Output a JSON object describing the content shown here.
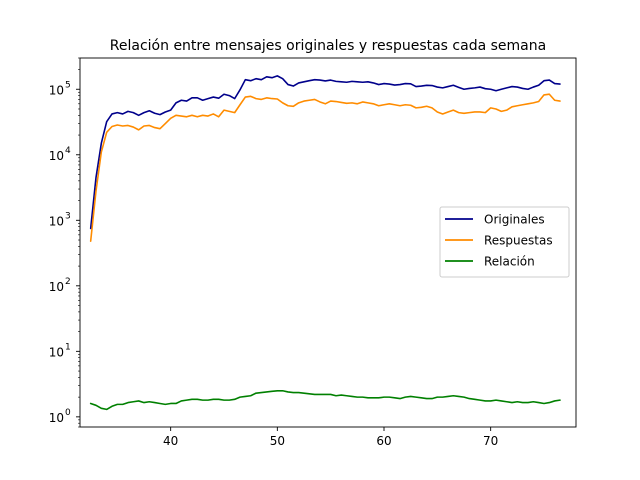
{
  "chart_data": {
    "type": "line",
    "title": "Relación entre mensajes originales y respuestas cada semana",
    "xlabel": "",
    "ylabel": "",
    "yscale": "log",
    "xlim": [
      31.5,
      78
    ],
    "ylim": [
      0.7,
      300000
    ],
    "x_ticks": [
      {
        "value": 40,
        "label": "40"
      },
      {
        "value": 50,
        "label": "50"
      },
      {
        "value": 60,
        "label": "60"
      },
      {
        "value": 70,
        "label": "70"
      }
    ],
    "y_ticks": [
      {
        "value": 1,
        "base": "10",
        "exp": "0"
      },
      {
        "value": 10,
        "base": "10",
        "exp": "1"
      },
      {
        "value": 100,
        "base": "10",
        "exp": "2"
      },
      {
        "value": 1000,
        "base": "10",
        "exp": "3"
      },
      {
        "value": 10000,
        "base": "10",
        "exp": "4"
      },
      {
        "value": 100000,
        "base": "10",
        "exp": "5"
      }
    ],
    "legend_position": "center-right",
    "grid": false,
    "x": [
      32.5,
      33,
      33.5,
      34,
      34.5,
      35,
      35.5,
      36,
      36.5,
      37,
      37.5,
      38,
      38.5,
      39,
      39.5,
      40,
      40.5,
      41,
      41.5,
      42,
      42.5,
      43,
      43.5,
      44,
      44.5,
      45,
      45.5,
      46,
      46.5,
      47,
      47.5,
      48,
      48.5,
      49,
      49.5,
      50,
      50.5,
      51,
      51.5,
      52,
      52.5,
      53,
      53.5,
      54,
      54.5,
      55,
      55.5,
      56,
      56.5,
      57,
      57.5,
      58,
      58.5,
      59,
      59.5,
      60,
      60.5,
      61,
      61.5,
      62,
      62.5,
      63,
      63.5,
      64,
      64.5,
      65,
      65.5,
      66,
      66.5,
      67,
      67.5,
      68,
      68.5,
      69,
      69.5,
      70,
      70.5,
      71,
      71.5,
      72,
      72.5,
      73,
      73.5,
      74,
      74.5,
      75,
      75.5,
      76,
      76.5
    ],
    "series": [
      {
        "name": "Originales",
        "color": "#00008b",
        "values": [
          750,
          4500,
          15000,
          32000,
          42000,
          44000,
          42000,
          46000,
          44000,
          40000,
          44000,
          47000,
          43000,
          41000,
          45000,
          48000,
          62000,
          68000,
          66000,
          74000,
          74000,
          68000,
          72000,
          76000,
          73000,
          84000,
          80000,
          72000,
          98000,
          140000,
          135000,
          145000,
          140000,
          155000,
          150000,
          160000,
          145000,
          118000,
          112000,
          125000,
          130000,
          135000,
          140000,
          138000,
          134000,
          138000,
          132000,
          130000,
          128000,
          132000,
          130000,
          128000,
          130000,
          125000,
          118000,
          122000,
          120000,
          116000,
          118000,
          122000,
          121000,
          110000,
          112000,
          115000,
          114000,
          108000,
          105000,
          110000,
          115000,
          107000,
          100000,
          103000,
          105000,
          108000,
          102000,
          100000,
          95000,
          100000,
          105000,
          110000,
          108000,
          103000,
          100000,
          108000,
          115000,
          135000,
          138000,
          122000,
          120000
        ]
      },
      {
        "name": "Respuestas",
        "color": "#ff8c00",
        "values": [
          480,
          2800,
          11000,
          22000,
          27000,
          28500,
          27500,
          28000,
          26500,
          24000,
          27500,
          28000,
          26000,
          25000,
          30000,
          36000,
          40000,
          39000,
          38000,
          40000,
          38000,
          40000,
          39000,
          42000,
          38000,
          48000,
          46000,
          44000,
          58000,
          76000,
          78000,
          72000,
          70000,
          74000,
          72000,
          71000,
          62000,
          56000,
          55000,
          62000,
          66000,
          68000,
          70000,
          64000,
          60000,
          66000,
          65000,
          63000,
          61000,
          62000,
          60000,
          64000,
          62000,
          60000,
          56000,
          58000,
          60000,
          58000,
          56000,
          58000,
          57000,
          52000,
          53000,
          55000,
          52000,
          45000,
          42000,
          45000,
          48000,
          44000,
          43000,
          44000,
          45000,
          45000,
          44000,
          52000,
          50000,
          46000,
          48000,
          54000,
          56000,
          58000,
          60000,
          62000,
          65000,
          82000,
          84000,
          68000,
          66000
        ]
      },
      {
        "name": "Relación",
        "color": "#008000",
        "values": [
          1.6,
          1.5,
          1.35,
          1.3,
          1.45,
          1.55,
          1.55,
          1.65,
          1.7,
          1.75,
          1.65,
          1.7,
          1.65,
          1.6,
          1.55,
          1.6,
          1.6,
          1.75,
          1.8,
          1.85,
          1.85,
          1.8,
          1.8,
          1.85,
          1.85,
          1.8,
          1.8,
          1.85,
          2.0,
          2.05,
          2.1,
          2.3,
          2.35,
          2.4,
          2.45,
          2.5,
          2.5,
          2.4,
          2.35,
          2.35,
          2.3,
          2.25,
          2.2,
          2.2,
          2.2,
          2.2,
          2.1,
          2.15,
          2.1,
          2.05,
          2.0,
          2.0,
          1.95,
          1.95,
          1.95,
          2.0,
          2.0,
          1.95,
          1.9,
          2.0,
          2.05,
          2.0,
          1.95,
          1.9,
          1.9,
          2.0,
          2.0,
          2.05,
          2.1,
          2.05,
          2.0,
          1.9,
          1.85,
          1.8,
          1.75,
          1.75,
          1.8,
          1.75,
          1.7,
          1.65,
          1.7,
          1.65,
          1.65,
          1.7,
          1.65,
          1.6,
          1.65,
          1.75,
          1.8
        ]
      }
    ]
  }
}
